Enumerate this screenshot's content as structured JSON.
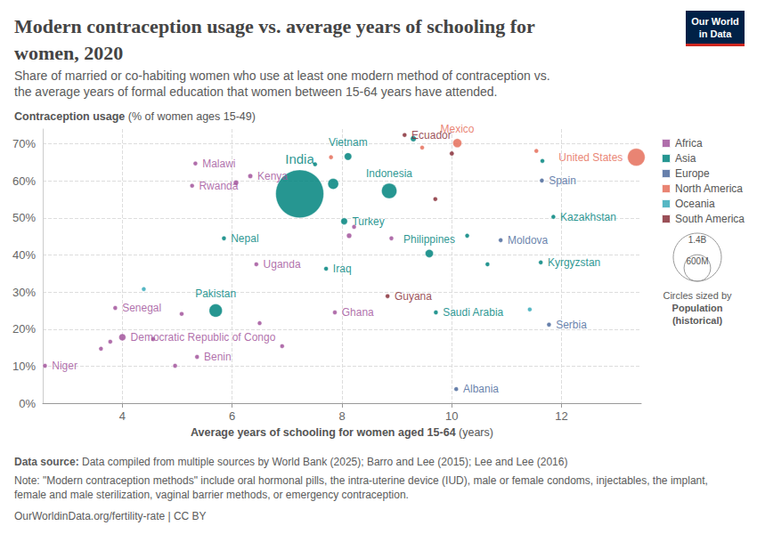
{
  "chart_data": {
    "type": "scatter",
    "title": "Modern contraception usage vs. average years of schooling for women, 2020",
    "subtitle": "Share of married or co-habiting women who use at least one modern method of contraception vs. the average years of formal education that women between 15-64 years have attended.",
    "y_label": "Contraception usage (% of women ages 15-49)",
    "x_label": "Average years of schooling for women aged 15-64 (years)",
    "xlim": [
      2.55,
      13.45
    ],
    "xticks": [
      4,
      6,
      8,
      10,
      12
    ],
    "ylim": [
      0,
      74
    ],
    "yticks": [
      {
        "value": 0,
        "label": "0%"
      },
      {
        "value": 10,
        "label": "10%"
      },
      {
        "value": 20,
        "label": "20%"
      },
      {
        "value": 30,
        "label": "30%"
      },
      {
        "value": 40,
        "label": "40%"
      },
      {
        "value": 50,
        "label": "50%"
      },
      {
        "value": 60,
        "label": "60%"
      },
      {
        "value": 70,
        "label": "70%"
      }
    ],
    "grid": true,
    "legend": "right",
    "series": [
      {
        "name": "Africa",
        "color": "#a2559c",
        "x": [
          2.59,
          3.87,
          4.0,
          5.36,
          5.33,
          5.27,
          6.33,
          6.44,
          7.87,
          3.78,
          3.61,
          4.56,
          5.08,
          4.96,
          6.5,
          6.91,
          8.13,
          8.22,
          8.9,
          6.07
        ],
        "y": [
          10.1,
          25.7,
          17.8,
          12.5,
          64.7,
          58.7,
          61.3,
          37.5,
          24.5,
          16.6,
          14.7,
          17.3,
          24.1,
          10.1,
          21.6,
          15.4,
          45.2,
          47.6,
          44.5,
          59.5
        ],
        "size": [
          24000000,
          17000000,
          90000000,
          12000000,
          19000000,
          13000000,
          53000000,
          45000000,
          31000000,
          30000000,
          20000000,
          28000000,
          15000000,
          16000000,
          27000000,
          44000000,
          59000000,
          10000000,
          5000000,
          60000000
        ],
        "labels": [
          "Niger",
          "Senegal",
          "Democratic Republic of Congo",
          "Benin",
          "Malawi",
          "Rwanda",
          "Kenya",
          "Uganda",
          "Ghana",
          null,
          null,
          null,
          null,
          null,
          null,
          null,
          null,
          null,
          null,
          null
        ]
      },
      {
        "name": "Asia",
        "color": "#00847e",
        "x": [
          5.7,
          5.85,
          7.23,
          7.71,
          8.04,
          8.11,
          8.86,
          9.59,
          9.71,
          11.62,
          11.85,
          7.84,
          9.3,
          10.28,
          10.65,
          11.65,
          7.51
        ],
        "y": [
          25.0,
          44.5,
          56.5,
          36.3,
          49.1,
          66.6,
          57.3,
          40.4,
          24.5,
          38.0,
          50.3,
          59.2,
          71.4,
          45.2,
          37.5,
          65.4,
          64.5
        ],
        "size": [
          220000000,
          29000000,
          1396000000,
          42000000,
          84000000,
          97000000,
          273000000,
          110000000,
          35000000,
          6600000,
          19000000,
          165000000,
          70000000,
          6000000,
          5000000,
          3000000,
          10000000
        ],
        "labels": [
          "Pakistan",
          "Nepal",
          "India",
          "Iraq",
          "Turkey",
          "Vietnam",
          "Indonesia",
          "Philippines",
          "Saudi Arabia",
          "Kyrgyzstan",
          "Kazakhstan",
          null,
          null,
          null,
          null,
          null,
          null
        ]
      },
      {
        "name": "Europe",
        "color": "#4c6a9c",
        "x": [
          10.08,
          10.89,
          11.77,
          11.64
        ],
        "y": [
          3.8,
          44.0,
          21.2,
          60.1
        ],
        "size": [
          2800000,
          2600000,
          6900000,
          47000000
        ],
        "labels": [
          "Albania",
          "Moldova",
          "Serbia",
          "Spain"
        ]
      },
      {
        "name": "North America",
        "color": "#e56e5a",
        "x": [
          10.1,
          13.36,
          7.8,
          9.46,
          11.54
        ],
        "y": [
          70.2,
          66.4,
          66.4,
          69.0,
          68.1
        ],
        "size": [
          126000000,
          331000000,
          11000000,
          5000000,
          38000000
        ],
        "labels": [
          "Mexico",
          "United States",
          null,
          null,
          null
        ]
      },
      {
        "name": "Oceania",
        "color": "#38aaba",
        "x": [
          4.39,
          11.42
        ],
        "y": [
          30.8,
          25.3
        ],
        "size": [
          9000000,
          1000000
        ],
        "labels": [
          null,
          null
        ]
      },
      {
        "name": "South America",
        "color": "#883039",
        "x": [
          9.14,
          8.83,
          10.0,
          9.7
        ],
        "y": [
          72.4,
          28.9,
          67.4,
          55.1
        ],
        "size": [
          18000000,
          800000,
          50000000,
          33000000
        ],
        "labels": [
          "Ecuador",
          "Guyana",
          null,
          null
        ]
      }
    ],
    "size_legend": {
      "title_lines": [
        "Circles sized by",
        "Population",
        "(historical)"
      ],
      "values": [
        1400000000,
        600000000
      ],
      "value_labels": [
        "1.4B",
        "600M"
      ]
    },
    "source": "Data source: Data compiled from multiple sources by World Bank (2025); Barro and Lee (2015); Lee and Lee (2016)",
    "note": "Note: \"Modern contraception methods\" include oral hormonal pills, the intra-uterine device (IUD), male or female condoms, injectables, the implant, female and male sterilization, vaginal barrier methods, or emergency contraception.",
    "url": "OurWorldinData.org/fertility-rate | CC BY",
    "logo": [
      "Our World",
      "in Data"
    ]
  }
}
